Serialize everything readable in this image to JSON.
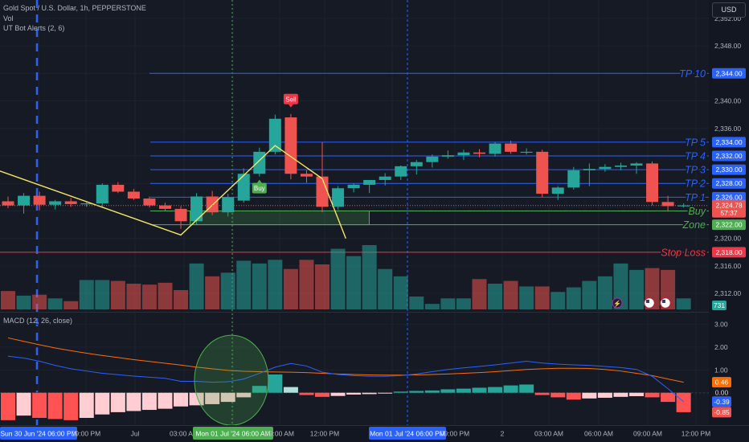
{
  "header": {
    "symbol_line": "Gold Spot / U.S. Dollar, 1h, PEPPERSTONE",
    "vol_label": "Vol",
    "indicator_label": "UT Bot Alerts (2, 6)",
    "currency": "USD"
  },
  "macd_pane": {
    "label": "MACD (12, 26, close)"
  },
  "colors": {
    "up": "#26a69a",
    "down": "#ef5350",
    "level": "#2962ff",
    "tp_text": "#2962ff",
    "zone": "#4caf50",
    "stop": "#f23645",
    "macd": "#2962ff",
    "signal": "#ff6d00"
  },
  "chart_data": [
    {
      "type": "candlestick",
      "price_axis_ticks": [
        2352,
        2348,
        2344,
        2340,
        2336,
        2332,
        2328,
        2324,
        2320,
        2316,
        2312
      ],
      "ylim": [
        2310.5,
        2353.5
      ],
      "time_labels": [
        "Sun 30 Jun '24  06:00 PM",
        "09:00 PM",
        "Jul",
        "03:00 AM",
        "Mon 01 Jul '24  06:00 AM",
        "09:00 AM",
        "12:00 PM",
        "Mon 01 Jul '24  06:00 PM",
        "09:00 PM",
        "2",
        "03:00 AM",
        "06:00 AM",
        "09:00 AM",
        "12:00 PM"
      ],
      "candles": [
        {
          "o": 2325.4,
          "h": 2326.1,
          "l": 2324.4,
          "c": 2324.8
        },
        {
          "o": 2324.8,
          "h": 2326.6,
          "l": 2323.6,
          "c": 2326.2
        },
        {
          "o": 2326.2,
          "h": 2326.8,
          "l": 2324.1,
          "c": 2324.9
        },
        {
          "o": 2324.9,
          "h": 2325.6,
          "l": 2324.2,
          "c": 2325.4
        },
        {
          "o": 2325.4,
          "h": 2325.9,
          "l": 2324.6,
          "c": 2325.0
        },
        {
          "o": 2325.0,
          "h": 2325.4,
          "l": 2324.6,
          "c": 2325.1
        },
        {
          "o": 2325.1,
          "h": 2328.0,
          "l": 2324.6,
          "c": 2327.8
        },
        {
          "o": 2327.8,
          "h": 2328.2,
          "l": 2326.6,
          "c": 2326.8
        },
        {
          "o": 2326.8,
          "h": 2327.2,
          "l": 2325.6,
          "c": 2325.8
        },
        {
          "o": 2325.8,
          "h": 2326.1,
          "l": 2324.5,
          "c": 2324.8
        },
        {
          "o": 2324.8,
          "h": 2325.2,
          "l": 2324.0,
          "c": 2324.3
        },
        {
          "o": 2324.3,
          "h": 2324.7,
          "l": 2321.4,
          "c": 2322.5
        },
        {
          "o": 2322.5,
          "h": 2326.6,
          "l": 2322.0,
          "c": 2326.1
        },
        {
          "o": 2326.1,
          "h": 2326.9,
          "l": 2323.4,
          "c": 2323.8
        },
        {
          "o": 2323.8,
          "h": 2326.5,
          "l": 2323.2,
          "c": 2326.0
        },
        {
          "o": 2325.5,
          "h": 2330.2,
          "l": 2325.2,
          "c": 2329.4
        },
        {
          "o": 2329.4,
          "h": 2333.2,
          "l": 2329.0,
          "c": 2332.6
        },
        {
          "o": 2332.6,
          "h": 2338.0,
          "l": 2332.2,
          "c": 2337.4
        },
        {
          "o": 2337.6,
          "h": 2338.1,
          "l": 2328.6,
          "c": 2329.4
        },
        {
          "o": 2329.4,
          "h": 2329.9,
          "l": 2328.1,
          "c": 2329.0
        },
        {
          "o": 2329.0,
          "h": 2334.0,
          "l": 2323.8,
          "c": 2324.6
        },
        {
          "o": 2324.6,
          "h": 2327.6,
          "l": 2324.2,
          "c": 2327.3
        },
        {
          "o": 2327.3,
          "h": 2328.0,
          "l": 2326.7,
          "c": 2327.8
        },
        {
          "o": 2327.8,
          "h": 2328.5,
          "l": 2326.6,
          "c": 2328.5
        },
        {
          "o": 2328.5,
          "h": 2329.5,
          "l": 2327.7,
          "c": 2329.0
        },
        {
          "o": 2329.0,
          "h": 2330.6,
          "l": 2328.5,
          "c": 2330.5
        },
        {
          "o": 2330.5,
          "h": 2331.4,
          "l": 2329.3,
          "c": 2331.1
        },
        {
          "o": 2331.1,
          "h": 2332.2,
          "l": 2330.3,
          "c": 2331.9
        },
        {
          "o": 2331.9,
          "h": 2332.8,
          "l": 2331.6,
          "c": 2332.1
        },
        {
          "o": 2332.1,
          "h": 2332.9,
          "l": 2331.4,
          "c": 2332.5
        },
        {
          "o": 2332.5,
          "h": 2333.0,
          "l": 2331.8,
          "c": 2332.3
        },
        {
          "o": 2332.3,
          "h": 2334.0,
          "l": 2331.9,
          "c": 2333.8
        },
        {
          "o": 2333.8,
          "h": 2334.2,
          "l": 2332.3,
          "c": 2332.6
        },
        {
          "o": 2332.6,
          "h": 2333.1,
          "l": 2332.2,
          "c": 2332.6
        },
        {
          "o": 2332.6,
          "h": 2332.9,
          "l": 2326.0,
          "c": 2326.5
        },
        {
          "o": 2326.5,
          "h": 2327.6,
          "l": 2325.6,
          "c": 2327.4
        },
        {
          "o": 2327.4,
          "h": 2330.4,
          "l": 2327.1,
          "c": 2329.9
        },
        {
          "o": 2329.9,
          "h": 2330.9,
          "l": 2327.6,
          "c": 2330.1
        },
        {
          "o": 2330.1,
          "h": 2330.8,
          "l": 2329.7,
          "c": 2330.4
        },
        {
          "o": 2330.4,
          "h": 2331.0,
          "l": 2329.9,
          "c": 2330.6
        },
        {
          "o": 2330.6,
          "h": 2331.1,
          "l": 2329.4,
          "c": 2330.9
        },
        {
          "o": 2330.9,
          "h": 2331.2,
          "l": 2324.8,
          "c": 2325.3
        },
        {
          "o": 2325.3,
          "h": 2326.2,
          "l": 2323.9,
          "c": 2324.7
        },
        {
          "o": 2324.7,
          "h": 2325.1,
          "l": 2324.5,
          "c": 2324.8
        }
      ],
      "levels": [
        {
          "label": "TP 10",
          "value": 2344.0,
          "price_label": "2,344.00",
          "kind": "tp"
        },
        {
          "label": "TP 5",
          "value": 2334.0,
          "price_label": "2,334.00",
          "kind": "tp"
        },
        {
          "label": "TP 4",
          "value": 2332.0,
          "price_label": "2,332.00",
          "kind": "tp"
        },
        {
          "label": "TP 3",
          "value": 2330.0,
          "price_label": "2,330.00",
          "kind": "tp"
        },
        {
          "label": "TP 2",
          "value": 2328.0,
          "price_label": "2,328.00",
          "kind": "tp"
        },
        {
          "label": "TP 1",
          "value": 2326.0,
          "price_label": "2,326.00",
          "kind": "tp"
        },
        {
          "label": "Buy",
          "value": 2324.0,
          "price_label": "2,324.00",
          "kind": "zone"
        },
        {
          "label": "Zone",
          "value": 2322.0,
          "price_label": "2,322.00",
          "kind": "zone"
        },
        {
          "label": "Stop Loss",
          "value": 2318.0,
          "price_label": "2,318.00",
          "kind": "stop"
        }
      ],
      "zone_box": {
        "from_candle": 12,
        "to_candle": 24,
        "top": 2324.0,
        "bottom": 2322.0
      },
      "trend_line": [
        [
          -3,
          2331.8
        ],
        [
          11,
          2320.5
        ],
        [
          17,
          2333.5
        ],
        [
          20,
          2328.7
        ],
        [
          21.5,
          2320.0
        ]
      ],
      "last_price": {
        "value": 2324.78,
        "label": "2,324.78",
        "countdown": "57:37"
      },
      "signals": [
        {
          "label": "Buy",
          "candle": 16,
          "side": "buy"
        },
        {
          "label": "Sell",
          "candle": 18,
          "side": "sell"
        }
      ],
      "volume": {
        "values": [
          20,
          15,
          16,
          12,
          9,
          32,
          32,
          31,
          28,
          27,
          29,
          21,
          50,
          36,
          40,
          53,
          50,
          54,
          44,
          54,
          49,
          66,
          58,
          70,
          44,
          36,
          14,
          6,
          12,
          12,
          33,
          28,
          31,
          25,
          25,
          19,
          24,
          31,
          36,
          50,
          43,
          45,
          43,
          12
        ],
        "last_label": "731"
      }
    },
    {
      "type": "macd",
      "axis_ticks": [
        3.0,
        2.0,
        1.0,
        0.0
      ],
      "ylim": [
        -1.1,
        3.4
      ],
      "macd": [
        1.6,
        1.52,
        1.38,
        1.2,
        1.05,
        0.95,
        0.85,
        0.79,
        0.73,
        0.68,
        0.63,
        0.5,
        0.5,
        0.46,
        0.48,
        0.6,
        0.85,
        1.12,
        1.28,
        1.17,
        0.9,
        0.8,
        0.75,
        0.72,
        0.72,
        0.75,
        0.82,
        0.92,
        1.02,
        1.09,
        1.15,
        1.22,
        1.3,
        1.38,
        1.3,
        1.25,
        1.22,
        1.2,
        1.15,
        1.1,
        1.02,
        0.72,
        0.18,
        -0.39
      ],
      "signal": [
        2.4,
        2.25,
        2.1,
        1.96,
        1.84,
        1.73,
        1.63,
        1.54,
        1.45,
        1.37,
        1.29,
        1.21,
        1.12,
        1.05,
        0.98,
        0.94,
        0.92,
        0.91,
        0.9,
        0.88,
        0.85,
        0.82,
        0.8,
        0.78,
        0.77,
        0.77,
        0.78,
        0.8,
        0.82,
        0.85,
        0.88,
        0.92,
        0.97,
        1.02,
        1.05,
        1.07,
        1.07,
        1.06,
        1.02,
        0.95,
        0.85,
        0.75,
        0.6,
        0.46
      ],
      "histogram": [
        -1.2,
        -1.0,
        -1.1,
        -1.15,
        -1.2,
        -1.1,
        -0.95,
        -0.85,
        -0.8,
        -0.75,
        -0.7,
        -0.6,
        -0.55,
        -0.5,
        -0.4,
        -0.2,
        0.3,
        0.8,
        0.25,
        -0.1,
        -0.18,
        -0.14,
        -0.08,
        -0.06,
        -0.03,
        0.05,
        0.08,
        0.1,
        0.15,
        0.18,
        0.22,
        0.25,
        0.32,
        0.36,
        -0.1,
        -0.2,
        -0.3,
        -0.25,
        -0.22,
        -0.18,
        -0.15,
        -0.2,
        -0.4,
        -0.85
      ],
      "value_labels": {
        "signal": "0.46",
        "zero": "0.00",
        "macd": "-0.39",
        "hist": "-0.85"
      }
    }
  ]
}
